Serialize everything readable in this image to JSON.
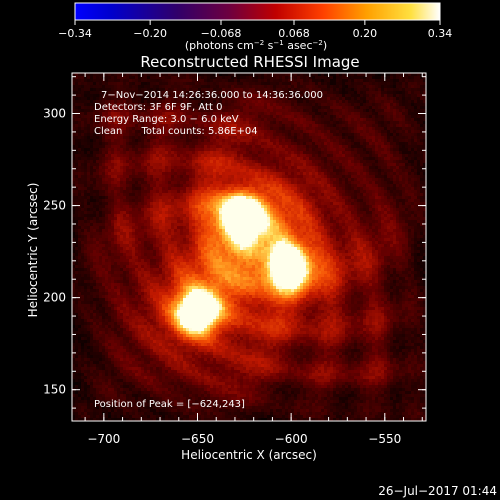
{
  "chart_data": {
    "type": "heatmap",
    "title": "Reconstructed RHESSI Image",
    "xlabel": "Heliocentric X (arcsec)",
    "ylabel": "Heliocentric Y (arcsec)",
    "xlim": [
      -717,
      -528
    ],
    "ylim": [
      133,
      322
    ],
    "x_ticks": [
      -700,
      -650,
      -600,
      -550
    ],
    "y_ticks": [
      150,
      200,
      250,
      300
    ],
    "x_tick_labels": [
      "−700",
      "−650",
      "−600",
      "−550"
    ],
    "y_tick_labels": [
      "150",
      "200",
      "250",
      "300"
    ],
    "colorbar": {
      "min": -0.34,
      "max": 0.34,
      "ticks": [
        -0.34,
        -0.2,
        -0.068,
        0.068,
        0.2,
        0.34
      ],
      "tick_labels": [
        "−0.34",
        "−0.20",
        "−0.068",
        "0.068",
        "0.20",
        "0.34"
      ],
      "units_parts": [
        "(photons cm",
        "−2",
        " s",
        "−1",
        " asec",
        "−2",
        ")"
      ],
      "colormap": "rhessi-standard"
    },
    "annotations": [
      "7−Nov−2014 14:26:36.000 to 14:36:36.000",
      "Detectors: 3F 6F 9F, Att 0",
      "Energy Range: 3.0 − 6.0 keV",
      "Clean      Total counts: 5.86E+04"
    ],
    "peak_label": "Position of Peak = [−624,243]",
    "sources": [
      {
        "x": -627,
        "y": 244,
        "peak": 0.34
      },
      {
        "x": -601,
        "y": 217,
        "peak": 0.3
      },
      {
        "x": -650,
        "y": 192,
        "peak": 0.31
      }
    ],
    "background_level": 0.1,
    "grid": false
  },
  "footer": {
    "date": "26−Jul−2017 01:44"
  }
}
